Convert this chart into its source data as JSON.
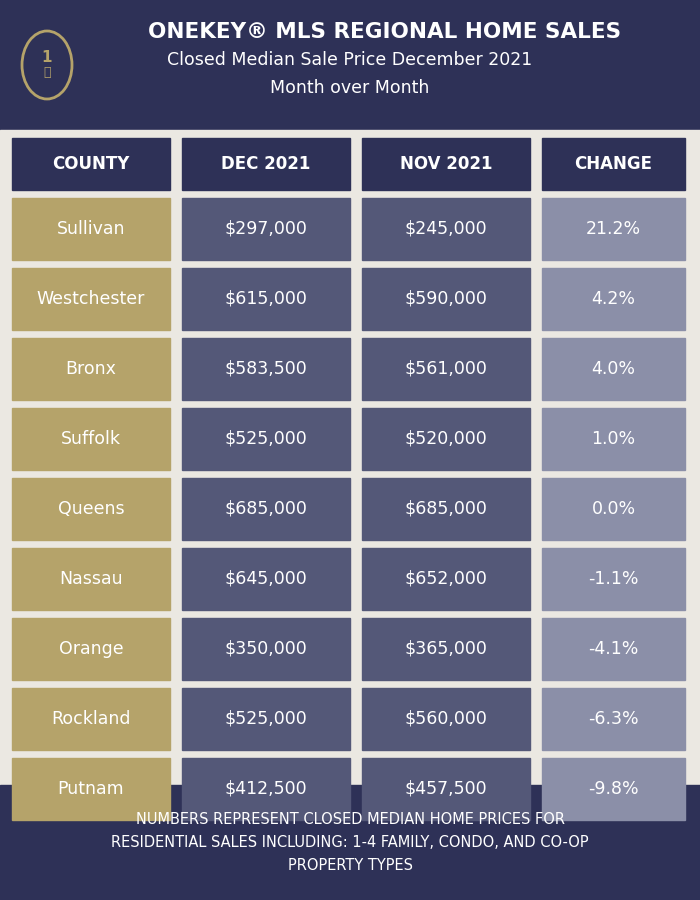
{
  "title_line1": "ONEKEY® MLS REGIONAL HOME SALES",
  "title_line2": "Closed Median Sale Price December 2021",
  "title_line3": "Month over Month",
  "header_bg": "#2e3157",
  "header_text_color": "#ffffff",
  "col_headers": [
    "COUNTY",
    "DEC 2021",
    "NOV 2021",
    "CHANGE"
  ],
  "counties": [
    "Sullivan",
    "Westchester",
    "Bronx",
    "Suffolk",
    "Queens",
    "Nassau",
    "Orange",
    "Rockland",
    "Putnam"
  ],
  "dec_values": [
    "$297,000",
    "$615,000",
    "$583,500",
    "$525,000",
    "$685,000",
    "$645,000",
    "$350,000",
    "$525,000",
    "$412,500"
  ],
  "nov_values": [
    "$245,000",
    "$590,000",
    "$561,000",
    "$520,000",
    "$685,000",
    "$652,000",
    "$365,000",
    "$560,000",
    "$457,500"
  ],
  "changes": [
    "21.2%",
    "4.2%",
    "4.0%",
    "1.0%",
    "0.0%",
    "-1.1%",
    "-4.1%",
    "-6.3%",
    "-9.8%"
  ],
  "county_bg": "#b5a36a",
  "data_bg": "#545878",
  "change_bg": "#8b8fa8",
  "cell_text_color": "#ffffff",
  "footer_text": "NUMBERS REPRESENT CLOSED MEDIAN HOME PRICES FOR\nRESIDENTIAL SALES INCLUDING: 1-4 FAMILY, CONDO, AND CO-OP\nPROPERTY TYPES",
  "footer_bg": "#2e3157",
  "footer_text_color": "#ffffff",
  "background_color": "#ebe8e2",
  "figure_bg": "#2e3157",
  "logo_color": "#b5a36a"
}
